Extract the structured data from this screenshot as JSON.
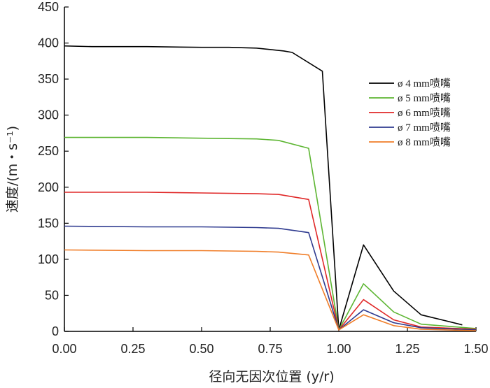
{
  "chart_data": {
    "type": "line",
    "xlabel": "径向无因次位置 (y/r)",
    "ylabel": "速度/(m・s⁻¹)",
    "xlim": [
      0,
      1.5
    ],
    "ylim": [
      0,
      450
    ],
    "x_ticks": [
      "0.00",
      "0.25",
      "0.50",
      "0.75",
      "1.00",
      "1.25",
      "1.50"
    ],
    "y_ticks": [
      "0",
      "50",
      "100",
      "150",
      "200",
      "250",
      "300",
      "350",
      "400",
      "450"
    ],
    "grid": false,
    "legend_position": "top-right",
    "series": [
      {
        "name": "ø 4 mm喷嘴",
        "color": "#000000",
        "x": [
          0,
          0.1,
          0.3,
          0.5,
          0.6,
          0.7,
          0.8,
          0.83,
          0.94,
          1.0,
          1.09,
          1.2,
          1.3,
          1.45
        ],
        "y": [
          396,
          395,
          395,
          394,
          394,
          393,
          389,
          387,
          361,
          2,
          120,
          56,
          23,
          9
        ]
      },
      {
        "name": "ø 5 mm喷嘴",
        "color": "#5cb531",
        "x": [
          0,
          0.3,
          0.5,
          0.7,
          0.78,
          0.89,
          1.0,
          1.09,
          1.2,
          1.3,
          1.5
        ],
        "y": [
          269,
          269,
          268,
          267,
          265,
          254,
          2,
          66,
          27,
          10,
          4
        ]
      },
      {
        "name": "ø 6 mm喷嘴",
        "color": "#e02828",
        "x": [
          0,
          0.3,
          0.5,
          0.7,
          0.78,
          0.89,
          1.0,
          1.09,
          1.2,
          1.3,
          1.5
        ],
        "y": [
          193,
          193,
          192,
          191,
          190,
          183,
          2,
          44,
          16,
          6,
          3
        ]
      },
      {
        "name": "ø 7 mm喷嘴",
        "color": "#2e3a8f",
        "x": [
          0,
          0.3,
          0.5,
          0.7,
          0.78,
          0.89,
          1.0,
          1.09,
          1.2,
          1.3,
          1.5
        ],
        "y": [
          146,
          145,
          145,
          144,
          143,
          137,
          2,
          30,
          12,
          5,
          2
        ]
      },
      {
        "name": "ø 8 mm喷嘴",
        "color": "#f07d28",
        "x": [
          0,
          0.3,
          0.5,
          0.7,
          0.78,
          0.89,
          1.0,
          1.09,
          1.2,
          1.3,
          1.5
        ],
        "y": [
          113,
          112,
          112,
          111,
          110,
          106,
          2,
          23,
          8,
          3,
          1
        ]
      }
    ]
  }
}
